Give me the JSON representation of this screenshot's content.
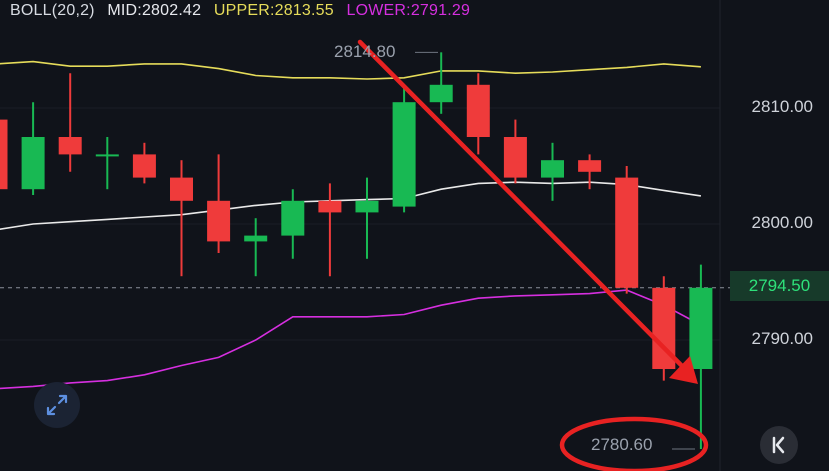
{
  "legend": {
    "name": "BOLL(20,2)",
    "mid_label": "MID:2802.42",
    "upper_label": "UPPER:2813.55",
    "lower_label": "LOWER:2791.29"
  },
  "price_axis": [
    "2810.00",
    "2800.00",
    "2790.00"
  ],
  "current_price_tag": "2794.50",
  "annotations": {
    "high_label": "2814.80",
    "low_label": "2780.60"
  },
  "icons": {
    "expand": "expand-icon",
    "back": "chevron-left-end-icon"
  },
  "colors": {
    "up": "#18b953",
    "down": "#ef3b3b",
    "upper_band": "#e6dc5a",
    "mid_band": "#e9e9e9",
    "lower_band": "#d62fe0",
    "arrow": "#e82222",
    "background": "#10131a"
  },
  "chart_data": {
    "type": "candlestick",
    "indicator": "BOLL(20,2)",
    "ylim": [
      2781,
      2817
    ],
    "candles": [
      {
        "o": 2809,
        "h": 2810,
        "l": 2801,
        "c": 2803
      },
      {
        "o": 2803,
        "h": 2810.5,
        "l": 2802.5,
        "c": 2807.5
      },
      {
        "o": 2807.5,
        "h": 2813,
        "l": 2804.5,
        "c": 2806
      },
      {
        "o": 2806,
        "h": 2807.5,
        "l": 2803,
        "c": 2806
      },
      {
        "o": 2806,
        "h": 2807,
        "l": 2803.5,
        "c": 2804
      },
      {
        "o": 2804,
        "h": 2805.5,
        "l": 2795.5,
        "c": 2802
      },
      {
        "o": 2802,
        "h": 2806,
        "l": 2797.5,
        "c": 2798.5
      },
      {
        "o": 2798.5,
        "h": 2800.5,
        "l": 2795.5,
        "c": 2799
      },
      {
        "o": 2799,
        "h": 2803,
        "l": 2797,
        "c": 2802
      },
      {
        "o": 2802,
        "h": 2803.5,
        "l": 2795.5,
        "c": 2801
      },
      {
        "o": 2801,
        "h": 2804,
        "l": 2797,
        "c": 2802
      },
      {
        "o": 2801.5,
        "h": 2812,
        "l": 2801,
        "c": 2810.5
      },
      {
        "o": 2810.5,
        "h": 2814.8,
        "l": 2809.5,
        "c": 2812
      },
      {
        "o": 2812,
        "h": 2813,
        "l": 2806,
        "c": 2807.5
      },
      {
        "o": 2807.5,
        "h": 2809,
        "l": 2803.5,
        "c": 2804
      },
      {
        "o": 2804,
        "h": 2807,
        "l": 2802,
        "c": 2805.5
      },
      {
        "o": 2805.5,
        "h": 2806,
        "l": 2803,
        "c": 2804.5
      },
      {
        "o": 2804,
        "h": 2805,
        "l": 2794,
        "c": 2794.5
      },
      {
        "o": 2794.5,
        "h": 2795.5,
        "l": 2786.5,
        "c": 2787.5
      },
      {
        "o": 2787.5,
        "h": 2796.5,
        "l": 2780.6,
        "c": 2794.5
      }
    ],
    "upper": [
      2813.8,
      2814,
      2813.6,
      2813.6,
      2813.8,
      2813.8,
      2813.4,
      2812.8,
      2812.6,
      2812.6,
      2812.5,
      2812.6,
      2813.2,
      2813.2,
      2813,
      2813.1,
      2813.3,
      2813.5,
      2813.8,
      2813.55
    ],
    "mid": [
      2799.5,
      2800,
      2800.2,
      2800.4,
      2800.6,
      2800.8,
      2801.2,
      2801.6,
      2801.9,
      2802,
      2802.1,
      2802.2,
      2803,
      2803.5,
      2803.6,
      2803.5,
      2803.6,
      2803.4,
      2802.9,
      2802.42
    ],
    "lower": [
      2785.8,
      2786,
      2786.3,
      2786.5,
      2787,
      2787.8,
      2788.5,
      2790,
      2792,
      2792,
      2792,
      2792.2,
      2793,
      2793.6,
      2793.8,
      2793.9,
      2794,
      2794.3,
      2793,
      2791.29
    ]
  }
}
